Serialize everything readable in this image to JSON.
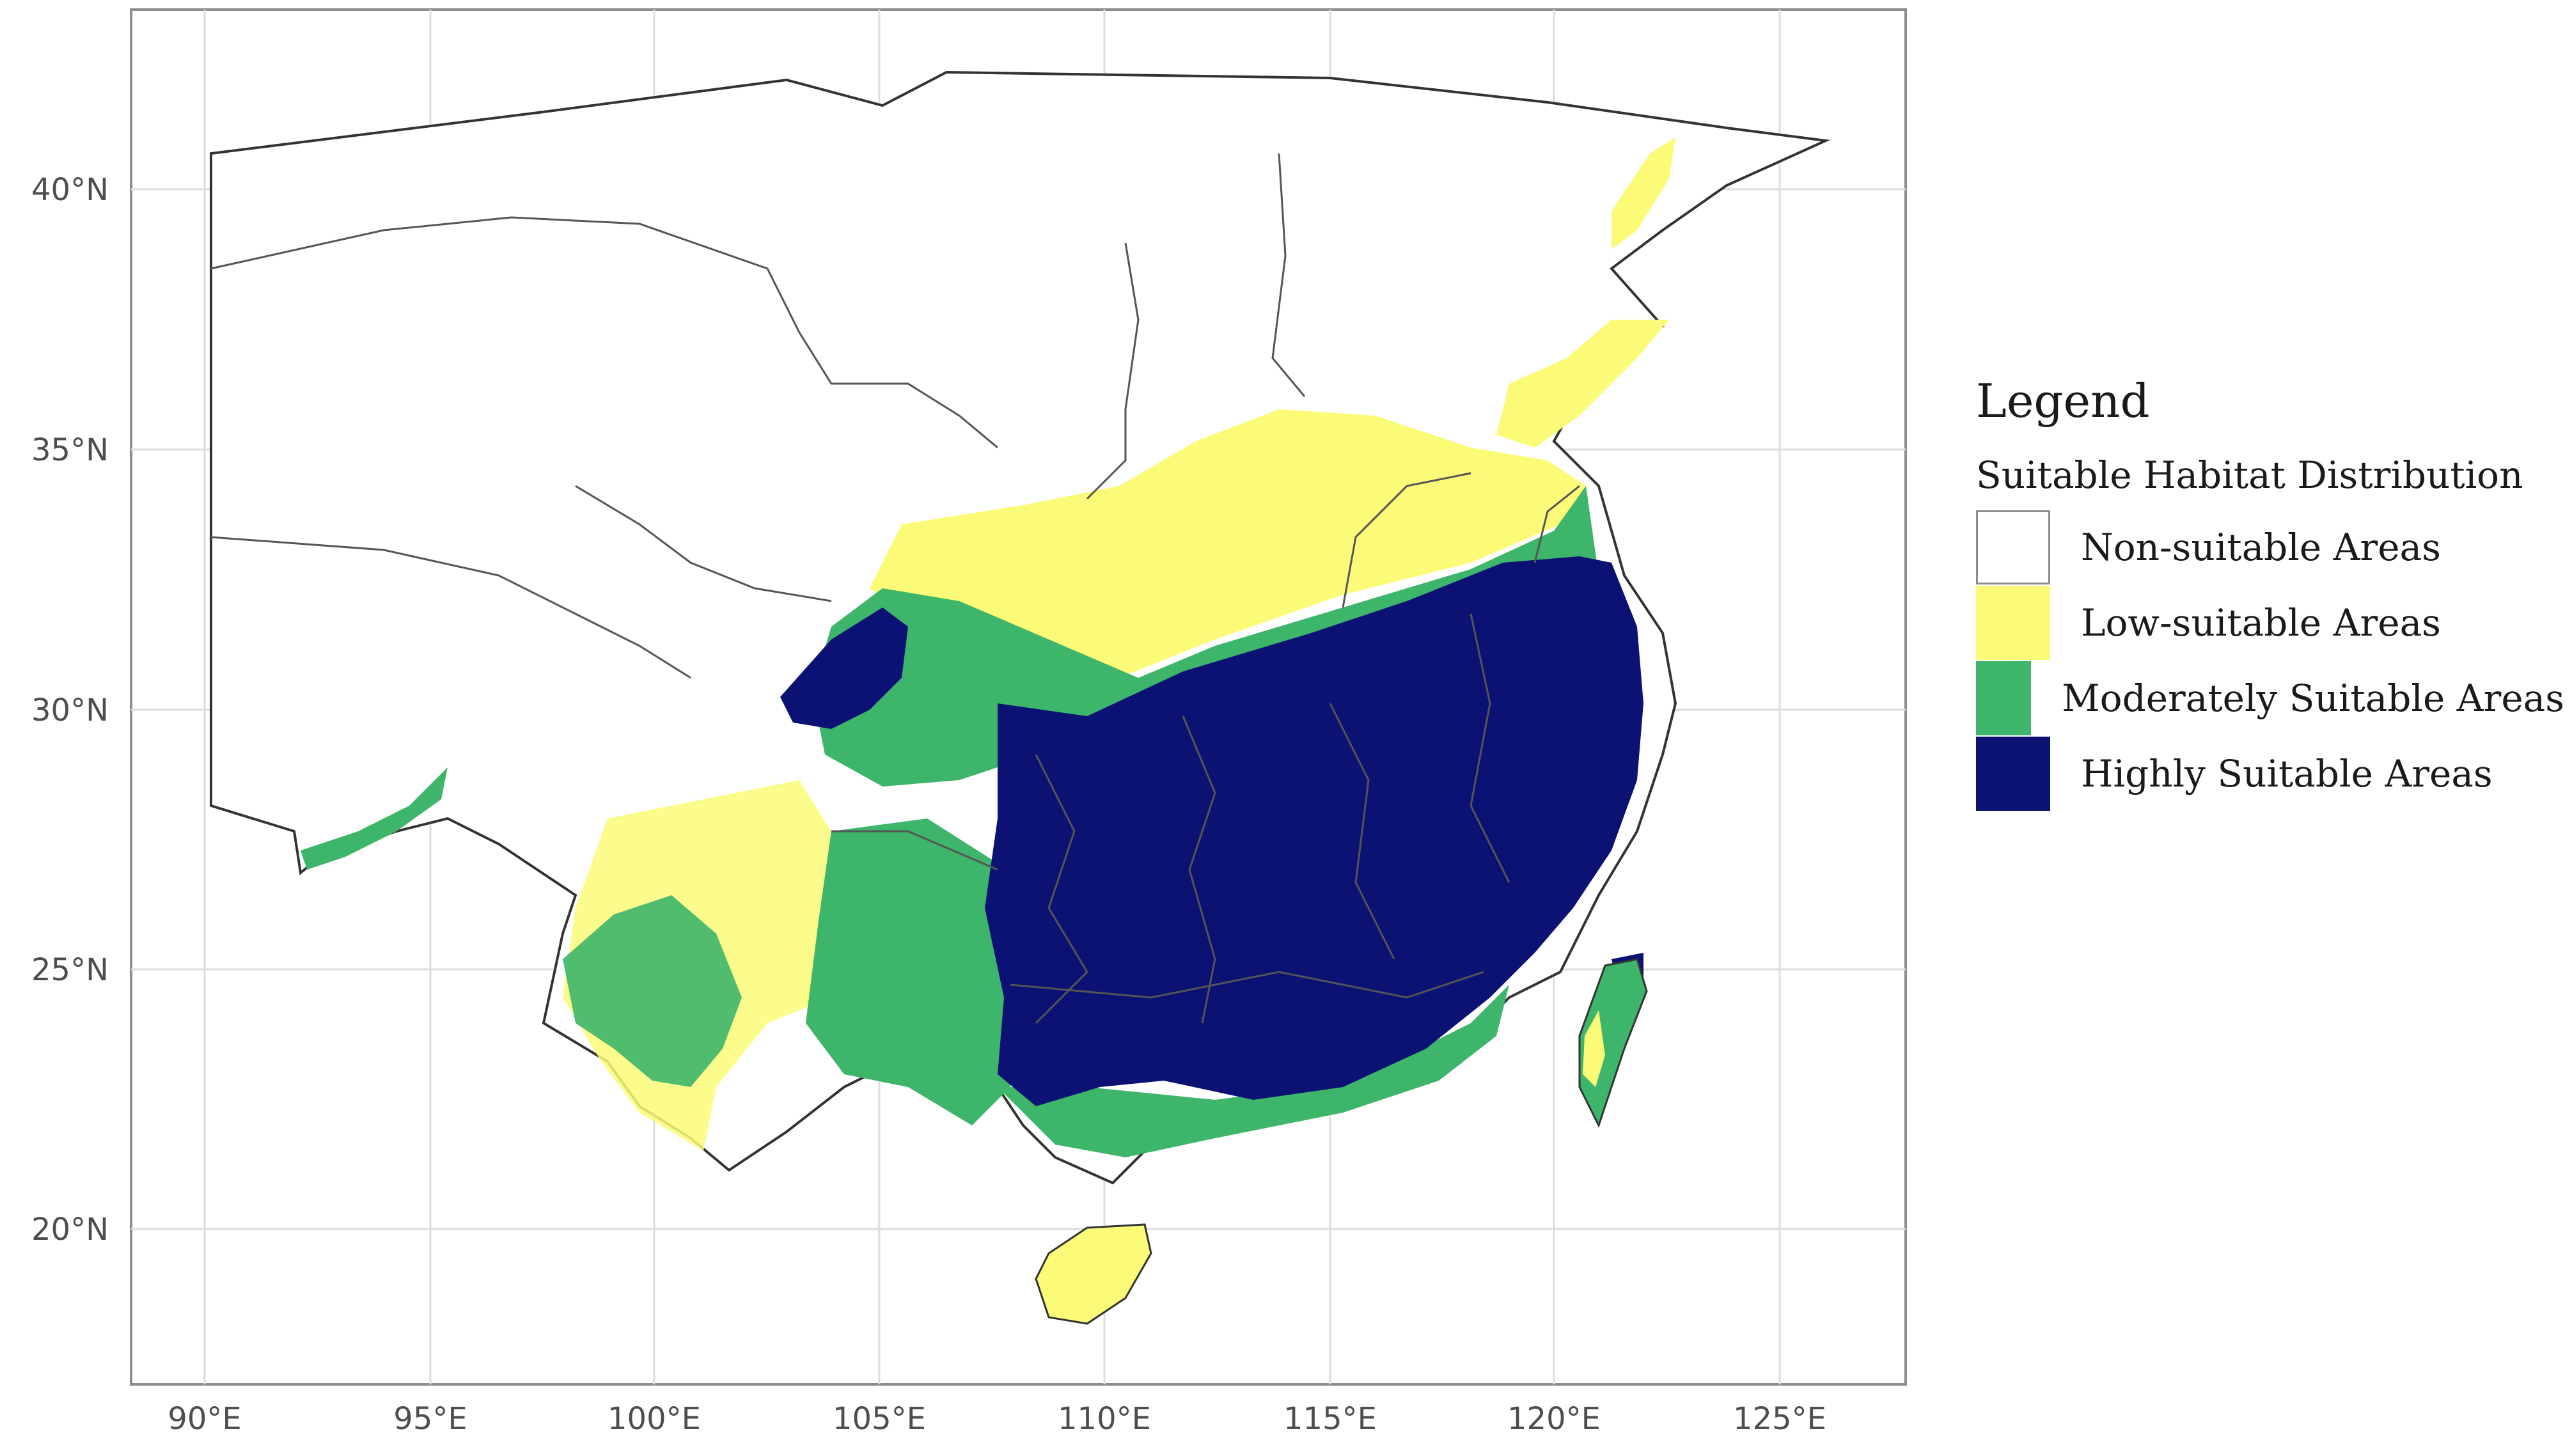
{
  "map": {
    "lon_ticks": [
      "90°E",
      "95°E",
      "100°E",
      "105°E",
      "110°E",
      "115°E",
      "120°E",
      "125°E"
    ],
    "lat_ticks": [
      "40°N",
      "35°N",
      "30°N",
      "25°N",
      "20°N"
    ],
    "colors": {
      "panel_border": "#8c8c8c",
      "grid": "#dcdcdc",
      "boundary": "#333333",
      "internal_boundary": "#555555",
      "non_suitable": "#ffffff",
      "low": "#fbfb78",
      "moderate": "#3db56a",
      "high": "#0b1273"
    }
  },
  "legend": {
    "title": "Legend",
    "subtitle": "Suitable Habitat Distribution",
    "items": [
      {
        "label": "Non-suitable Areas",
        "color": "#ffffff"
      },
      {
        "label": "Low-suitable Areas",
        "color": "#fbfb78"
      },
      {
        "label": "Moderately Suitable Areas",
        "color": "#3db56a"
      },
      {
        "label": "Highly Suitable Areas",
        "color": "#0b1273"
      }
    ]
  }
}
